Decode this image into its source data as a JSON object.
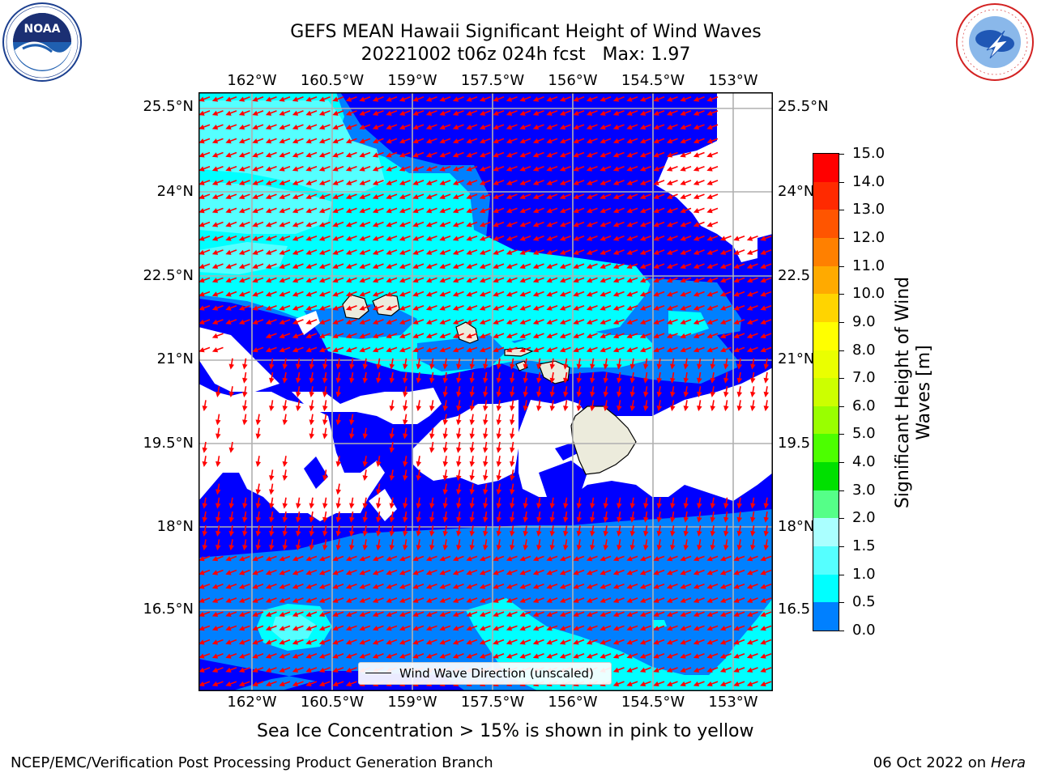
{
  "header": {
    "title_line1": "GEFS MEAN Hawaii Significant Height of Wind Waves",
    "title_line2": "20221002 t06z 024h fcst   Max: 1.97"
  },
  "logos": {
    "left": {
      "icon": "noaa-logo-icon",
      "text": "NOAA",
      "ring_text": "NATIONAL OCEANIC AND ATMOSPHERIC ADMINISTRATION · U.S. DEPARTMENT OF COMMERCE"
    },
    "right": {
      "icon": "nws-logo-icon",
      "ring_text": "NATIONAL WEATHER SERVICE"
    }
  },
  "map": {
    "lon_ticks": [
      "162°W",
      "160.5°W",
      "159°W",
      "157.5°W",
      "156°W",
      "154.5°W",
      "153°W"
    ],
    "lat_ticks_left": [
      "25.5°N",
      "24°N",
      "22.5°N",
      "21°N",
      "19.5°N",
      "18°N",
      "16.5°N"
    ],
    "lat_ticks_right": [
      "25.5°N",
      "24°N",
      "22.5",
      "21°N",
      "19.5",
      "18°N",
      "16.5"
    ],
    "legend_label": "Wind Wave Direction (unscaled)",
    "grid": true,
    "land_color": "#ecebdc",
    "vector_color": "#ff0000"
  },
  "colorbar": {
    "labels": [
      "15.0",
      "14.0",
      "13.0",
      "12.0",
      "11.0",
      "10.0",
      "9.0",
      "8.0",
      "7.0",
      "6.0",
      "5.0",
      "4.0",
      "3.0",
      "2.0",
      "1.5",
      "1.0",
      "0.5",
      "0.0"
    ],
    "colors": [
      "#ff0000",
      "#ff2a00",
      "#ff5500",
      "#ff8000",
      "#ffaa00",
      "#ffd400",
      "#ffff00",
      "#eaff00",
      "#ccff00",
      "#99ff00",
      "#4cff00",
      "#00e000",
      "#55ff88",
      "#aaffff",
      "#55ffff",
      "#00ffff",
      "#0080ff",
      "#0000ff"
    ],
    "label": "Significant Height of Wind Waves [m]"
  },
  "notes": {
    "sea_ice": "Sea Ice Concentration > 15% is shown in pink to yellow"
  },
  "footer": {
    "left": "NCEP/EMC/Verification Post Processing Product Generation Branch",
    "right_date": "06 Oct 2022 on ",
    "right_host": "Hera"
  }
}
